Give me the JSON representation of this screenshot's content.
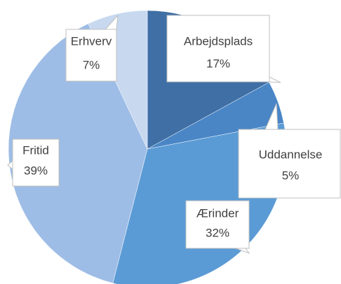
{
  "chart_data": {
    "type": "pie",
    "categories": [
      "Arbejdsplads",
      "Uddannelse",
      "Ærinder",
      "Fritid",
      "Erhverv"
    ],
    "values": [
      17,
      5,
      32,
      39,
      7
    ],
    "value_labels": [
      "17%",
      "5%",
      "32%",
      "39%",
      "7%"
    ],
    "colors": [
      "#3f6fa5",
      "#4a86c6",
      "#5b9bd5",
      "#9ebde6",
      "#c7d8ef"
    ]
  }
}
